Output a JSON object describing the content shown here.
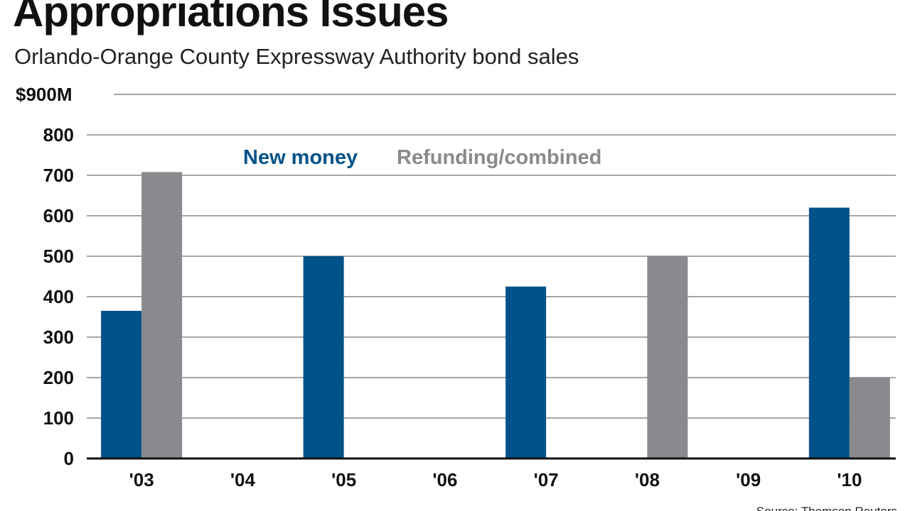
{
  "chart_data": {
    "type": "bar",
    "title": "Appropriations Issues",
    "subtitle": "Orlando-Orange County Expressway Authority bond sales",
    "categories": [
      "'03",
      "'04",
      "'05",
      "'06",
      "'07",
      "'08",
      "'09",
      "'10"
    ],
    "series": [
      {
        "name": "New money",
        "color": "#005288",
        "values": [
          365,
          0,
          500,
          0,
          425,
          0,
          0,
          620
        ]
      },
      {
        "name": "Refunding/combined",
        "color": "#888a8d",
        "values": [
          708,
          0,
          0,
          0,
          0,
          500,
          0,
          200
        ]
      }
    ],
    "y_ticks": [
      "0",
      "100",
      "200",
      "300",
      "400",
      "500",
      "600",
      "700",
      "800",
      "$900M"
    ],
    "ylim": [
      0,
      900
    ],
    "grid": true,
    "legend_position": "top-center",
    "xlabel": "",
    "ylabel": "",
    "source": "Source: Thomson Reuters"
  }
}
